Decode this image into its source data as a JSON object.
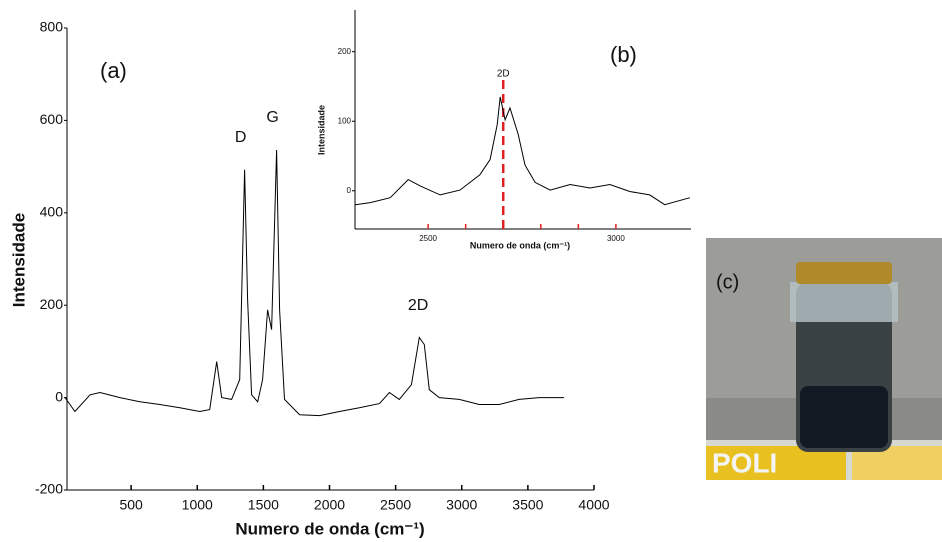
{
  "chart_data": [
    {
      "type": "line",
      "annotation": "(a)",
      "peak_labels": [
        {
          "x": 1358,
          "y": 493,
          "label": "D"
        },
        {
          "x": 1600,
          "y": 536,
          "label": "G"
        },
        {
          "x": 2700,
          "y": 130,
          "label": "2D"
        }
      ],
      "x_label": "Numero de onda (cm⁻¹)",
      "y_label": "Intensidade",
      "color": "#000000",
      "x": [
        0,
        75,
        190,
        265,
        415,
        566,
        717,
        868,
        1019,
        1094,
        1147,
        1185,
        1260,
        1321,
        1358,
        1381,
        1411,
        1457,
        1494,
        1532,
        1562,
        1600,
        1623,
        1660,
        1774,
        1925,
        2075,
        2226,
        2377,
        2453,
        2528,
        2619,
        2679,
        2717,
        2755,
        2830,
        2981,
        3132,
        3283,
        3434,
        3585,
        3774
      ],
      "values": [
        0,
        -30,
        6,
        11,
        0,
        -9,
        -15,
        -22,
        -30,
        -26,
        78,
        0,
        -4,
        39,
        493,
        212,
        6,
        -9,
        39,
        190,
        147,
        536,
        190,
        -4,
        -37,
        -39,
        -30,
        -22,
        -13,
        11,
        -4,
        28,
        130,
        115,
        17,
        0,
        -4,
        -15,
        -15,
        -4,
        0,
        0
      ],
      "xlim": [
        0,
        4000
      ],
      "ylim": [
        -200,
        800
      ],
      "xticks": [
        500,
        1000,
        1500,
        2000,
        2500,
        3000,
        3500,
        4000
      ],
      "yticks": [
        -200,
        0,
        200,
        400,
        600,
        800
      ]
    },
    {
      "type": "line",
      "annotation": "(b)",
      "x_label": "Numero de onda (cm⁻¹)",
      "y_label": "Intensidade",
      "color": "#000000",
      "x": [
        2306,
        2346,
        2399,
        2447,
        2479,
        2532,
        2585,
        2638,
        2665,
        2684,
        2692,
        2705,
        2718,
        2740,
        2758,
        2785,
        2825,
        2878,
        2931,
        2984,
        3037,
        3090,
        3130,
        3197
      ],
      "values": [
        -20,
        -17,
        -10,
        16,
        7,
        -6,
        1,
        23,
        45,
        95,
        135,
        102,
        119,
        81,
        37,
        12,
        1,
        9,
        4,
        9,
        -1,
        -6,
        -20,
        -10
      ],
      "xlim": [
        2300,
        3200
      ],
      "ylim": [
        -55,
        260
      ],
      "xticks": [
        2500,
        3000
      ],
      "minor_xticks": [
        2600,
        2700,
        2800,
        2900
      ],
      "tick_color": "#e02020",
      "yticks": [
        0,
        100,
        200
      ],
      "marker": {
        "x": 2700,
        "label": "2D",
        "color": "#e02020"
      }
    }
  ],
  "photo": {
    "label": "(c)",
    "sign": "POLI"
  }
}
